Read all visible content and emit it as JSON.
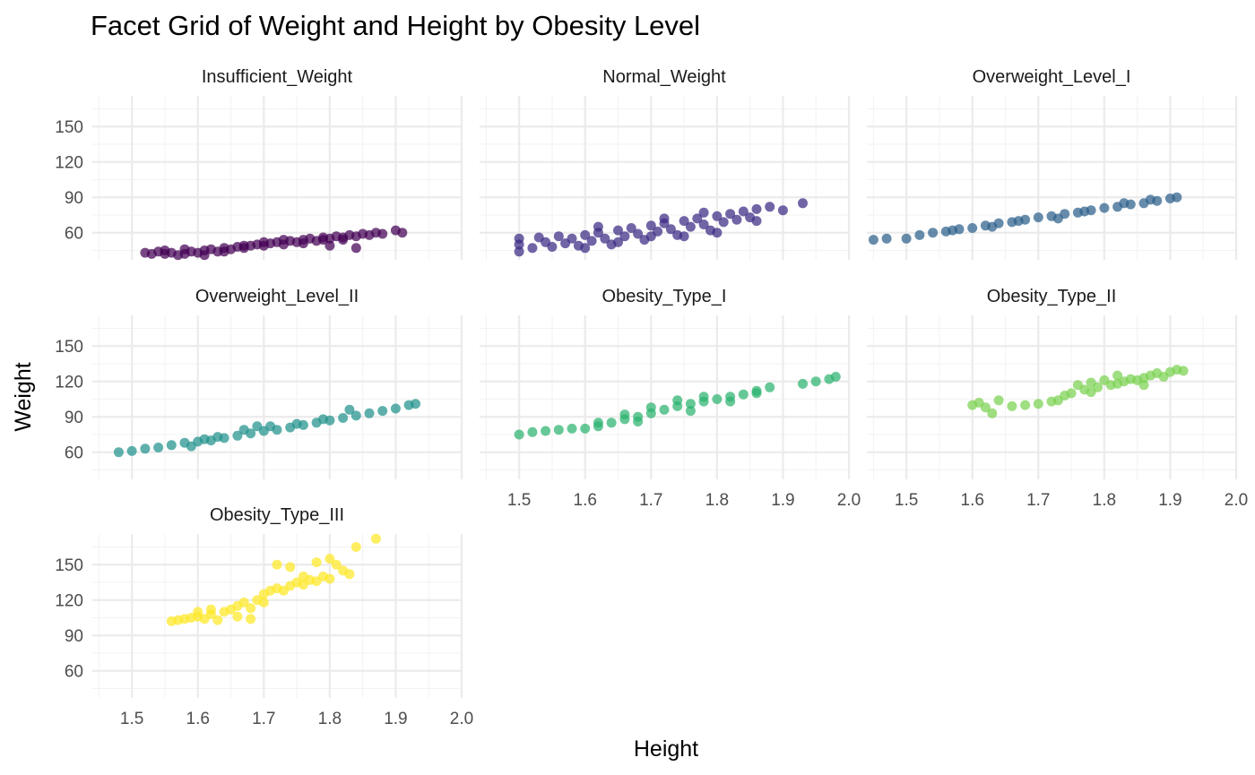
{
  "chart_data": {
    "type": "scatter",
    "title": "Facet Grid of Weight and Height by Obesity Level",
    "xlabel": "Height",
    "ylabel": "Weight",
    "xlim": [
      1.44,
      2.0
    ],
    "ylim": [
      37,
      176
    ],
    "x_ticks": [
      1.5,
      1.6,
      1.7,
      1.8,
      1.9,
      2.0
    ],
    "x_tick_labels": [
      "1.5",
      "1.6",
      "1.7",
      "1.8",
      "1.9",
      "2.0"
    ],
    "y_ticks": [
      60,
      90,
      120,
      150
    ],
    "y_tick_labels": [
      "60",
      "90",
      "120",
      "150"
    ],
    "grid": true,
    "legend": "none",
    "facets": [
      {
        "name": "Insufficient_Weight",
        "color": "#440154",
        "points": [
          [
            1.52,
            43
          ],
          [
            1.53,
            42
          ],
          [
            1.54,
            44
          ],
          [
            1.55,
            42
          ],
          [
            1.56,
            43
          ],
          [
            1.57,
            41
          ],
          [
            1.58,
            42
          ],
          [
            1.59,
            44
          ],
          [
            1.6,
            43
          ],
          [
            1.61,
            45
          ],
          [
            1.62,
            46
          ],
          [
            1.63,
            44
          ],
          [
            1.64,
            47
          ],
          [
            1.65,
            46
          ],
          [
            1.66,
            48
          ],
          [
            1.67,
            47
          ],
          [
            1.68,
            49
          ],
          [
            1.69,
            50
          ],
          [
            1.7,
            49
          ],
          [
            1.71,
            51
          ],
          [
            1.72,
            52
          ],
          [
            1.73,
            50
          ],
          [
            1.74,
            53
          ],
          [
            1.75,
            52
          ],
          [
            1.76,
            54
          ],
          [
            1.77,
            55
          ],
          [
            1.78,
            53
          ],
          [
            1.79,
            56
          ],
          [
            1.8,
            55
          ],
          [
            1.81,
            57
          ],
          [
            1.82,
            56
          ],
          [
            1.83,
            58
          ],
          [
            1.84,
            57
          ],
          [
            1.85,
            59
          ],
          [
            1.86,
            58
          ],
          [
            1.87,
            60
          ],
          [
            1.88,
            59
          ],
          [
            1.9,
            62
          ],
          [
            1.91,
            60
          ],
          [
            1.55,
            45
          ],
          [
            1.58,
            46
          ],
          [
            1.61,
            41
          ],
          [
            1.64,
            44
          ],
          [
            1.67,
            49
          ],
          [
            1.7,
            52
          ],
          [
            1.73,
            54
          ],
          [
            1.76,
            51
          ],
          [
            1.79,
            54
          ],
          [
            1.82,
            54
          ],
          [
            1.84,
            47
          ],
          [
            1.8,
            49
          ]
        ]
      },
      {
        "name": "Normal_Weight",
        "color": "#3b2a84",
        "points": [
          [
            1.5,
            44
          ],
          [
            1.5,
            50
          ],
          [
            1.5,
            55
          ],
          [
            1.52,
            47
          ],
          [
            1.53,
            56
          ],
          [
            1.54,
            52
          ],
          [
            1.55,
            48
          ],
          [
            1.56,
            57
          ],
          [
            1.57,
            51
          ],
          [
            1.58,
            55
          ],
          [
            1.59,
            49
          ],
          [
            1.6,
            58
          ],
          [
            1.61,
            53
          ],
          [
            1.62,
            60
          ],
          [
            1.63,
            55
          ],
          [
            1.64,
            50
          ],
          [
            1.65,
            62
          ],
          [
            1.66,
            57
          ],
          [
            1.67,
            64
          ],
          [
            1.68,
            59
          ],
          [
            1.69,
            54
          ],
          [
            1.7,
            66
          ],
          [
            1.71,
            61
          ],
          [
            1.72,
            68
          ],
          [
            1.73,
            63
          ],
          [
            1.74,
            58
          ],
          [
            1.75,
            70
          ],
          [
            1.76,
            65
          ],
          [
            1.77,
            72
          ],
          [
            1.78,
            67
          ],
          [
            1.79,
            62
          ],
          [
            1.8,
            74
          ],
          [
            1.81,
            69
          ],
          [
            1.82,
            76
          ],
          [
            1.83,
            71
          ],
          [
            1.84,
            78
          ],
          [
            1.85,
            73
          ],
          [
            1.86,
            80
          ],
          [
            1.88,
            82
          ],
          [
            1.9,
            79
          ],
          [
            1.93,
            85
          ],
          [
            1.6,
            47
          ],
          [
            1.65,
            52
          ],
          [
            1.7,
            57
          ],
          [
            1.75,
            57
          ],
          [
            1.8,
            60
          ],
          [
            1.72,
            72
          ],
          [
            1.62,
            65
          ],
          [
            1.78,
            77
          ],
          [
            1.86,
            70
          ]
        ]
      },
      {
        "name": "Overweight_Level_I",
        "color": "#2c5f8a",
        "points": [
          [
            1.45,
            54
          ],
          [
            1.47,
            55
          ],
          [
            1.5,
            55
          ],
          [
            1.52,
            58
          ],
          [
            1.54,
            60
          ],
          [
            1.56,
            61
          ],
          [
            1.58,
            63
          ],
          [
            1.6,
            64
          ],
          [
            1.62,
            66
          ],
          [
            1.64,
            68
          ],
          [
            1.66,
            69
          ],
          [
            1.68,
            71
          ],
          [
            1.7,
            73
          ],
          [
            1.72,
            74
          ],
          [
            1.74,
            76
          ],
          [
            1.76,
            77
          ],
          [
            1.78,
            79
          ],
          [
            1.8,
            81
          ],
          [
            1.82,
            82
          ],
          [
            1.84,
            84
          ],
          [
            1.86,
            85
          ],
          [
            1.88,
            87
          ],
          [
            1.9,
            89
          ],
          [
            1.91,
            90
          ],
          [
            1.57,
            62
          ],
          [
            1.63,
            65
          ],
          [
            1.67,
            70
          ],
          [
            1.73,
            72
          ],
          [
            1.77,
            78
          ],
          [
            1.83,
            85
          ],
          [
            1.87,
            88
          ]
        ]
      },
      {
        "name": "Overweight_Level_II",
        "color": "#21918c",
        "points": [
          [
            1.48,
            60
          ],
          [
            1.5,
            61
          ],
          [
            1.52,
            63
          ],
          [
            1.54,
            64
          ],
          [
            1.56,
            66
          ],
          [
            1.58,
            68
          ],
          [
            1.6,
            69
          ],
          [
            1.62,
            70
          ],
          [
            1.64,
            72
          ],
          [
            1.66,
            74
          ],
          [
            1.68,
            76
          ],
          [
            1.7,
            78
          ],
          [
            1.72,
            79
          ],
          [
            1.74,
            81
          ],
          [
            1.76,
            83
          ],
          [
            1.78,
            85
          ],
          [
            1.8,
            87
          ],
          [
            1.82,
            89
          ],
          [
            1.84,
            91
          ],
          [
            1.86,
            93
          ],
          [
            1.88,
            95
          ],
          [
            1.9,
            97
          ],
          [
            1.92,
            100
          ],
          [
            1.93,
            101
          ],
          [
            1.59,
            65
          ],
          [
            1.63,
            73
          ],
          [
            1.67,
            79
          ],
          [
            1.71,
            82
          ],
          [
            1.75,
            84
          ],
          [
            1.79,
            88
          ],
          [
            1.83,
            96
          ],
          [
            1.61,
            71
          ],
          [
            1.69,
            82
          ]
        ]
      },
      {
        "name": "Obesity_Type_I",
        "color": "#2db36f",
        "points": [
          [
            1.5,
            75
          ],
          [
            1.52,
            77
          ],
          [
            1.54,
            78
          ],
          [
            1.56,
            79
          ],
          [
            1.58,
            80
          ],
          [
            1.6,
            80
          ],
          [
            1.62,
            82
          ],
          [
            1.64,
            85
          ],
          [
            1.66,
            88
          ],
          [
            1.68,
            90
          ],
          [
            1.7,
            93
          ],
          [
            1.72,
            96
          ],
          [
            1.74,
            99
          ],
          [
            1.76,
            101
          ],
          [
            1.78,
            103
          ],
          [
            1.8,
            105
          ],
          [
            1.82,
            107
          ],
          [
            1.84,
            109
          ],
          [
            1.86,
            112
          ],
          [
            1.88,
            115
          ],
          [
            1.93,
            118
          ],
          [
            1.95,
            120
          ],
          [
            1.97,
            122
          ],
          [
            1.98,
            124
          ],
          [
            1.62,
            85
          ],
          [
            1.66,
            92
          ],
          [
            1.7,
            98
          ],
          [
            1.74,
            104
          ],
          [
            1.78,
            107
          ],
          [
            1.82,
            103
          ],
          [
            1.86,
            110
          ],
          [
            1.68,
            86
          ],
          [
            1.76,
            95
          ]
        ]
      },
      {
        "name": "Obesity_Type_II",
        "color": "#7ad151",
        "points": [
          [
            1.6,
            100
          ],
          [
            1.61,
            102
          ],
          [
            1.62,
            98
          ],
          [
            1.63,
            93
          ],
          [
            1.64,
            104
          ],
          [
            1.66,
            99
          ],
          [
            1.68,
            100
          ],
          [
            1.7,
            101
          ],
          [
            1.72,
            103
          ],
          [
            1.74,
            108
          ],
          [
            1.75,
            110
          ],
          [
            1.76,
            117
          ],
          [
            1.77,
            113
          ],
          [
            1.78,
            119
          ],
          [
            1.79,
            115
          ],
          [
            1.8,
            121
          ],
          [
            1.81,
            117
          ],
          [
            1.82,
            118
          ],
          [
            1.83,
            120
          ],
          [
            1.84,
            122
          ],
          [
            1.85,
            121
          ],
          [
            1.86,
            123
          ],
          [
            1.87,
            125
          ],
          [
            1.88,
            127
          ],
          [
            1.89,
            124
          ],
          [
            1.9,
            128
          ],
          [
            1.91,
            130
          ],
          [
            1.92,
            129
          ],
          [
            1.78,
            111
          ],
          [
            1.82,
            125
          ],
          [
            1.86,
            117
          ],
          [
            1.73,
            104
          ]
        ]
      },
      {
        "name": "Obesity_Type_III",
        "color": "#fde725",
        "points": [
          [
            1.56,
            102
          ],
          [
            1.57,
            103
          ],
          [
            1.58,
            104
          ],
          [
            1.59,
            105
          ],
          [
            1.6,
            106
          ],
          [
            1.6,
            110
          ],
          [
            1.61,
            104
          ],
          [
            1.62,
            108
          ],
          [
            1.63,
            103
          ],
          [
            1.64,
            110
          ],
          [
            1.65,
            112
          ],
          [
            1.66,
            115
          ],
          [
            1.67,
            118
          ],
          [
            1.68,
            113
          ],
          [
            1.69,
            120
          ],
          [
            1.7,
            125
          ],
          [
            1.71,
            128
          ],
          [
            1.72,
            130
          ],
          [
            1.73,
            128
          ],
          [
            1.74,
            132
          ],
          [
            1.75,
            135
          ],
          [
            1.76,
            133
          ],
          [
            1.77,
            137
          ],
          [
            1.78,
            136
          ],
          [
            1.79,
            140
          ],
          [
            1.8,
            138
          ],
          [
            1.8,
            155
          ],
          [
            1.81,
            150
          ],
          [
            1.82,
            145
          ],
          [
            1.83,
            142
          ],
          [
            1.84,
            165
          ],
          [
            1.87,
            172
          ],
          [
            1.62,
            112
          ],
          [
            1.66,
            106
          ],
          [
            1.68,
            104
          ],
          [
            1.72,
            150
          ],
          [
            1.74,
            148
          ],
          [
            1.76,
            140
          ],
          [
            1.78,
            152
          ],
          [
            1.7,
            118
          ]
        ]
      }
    ]
  }
}
